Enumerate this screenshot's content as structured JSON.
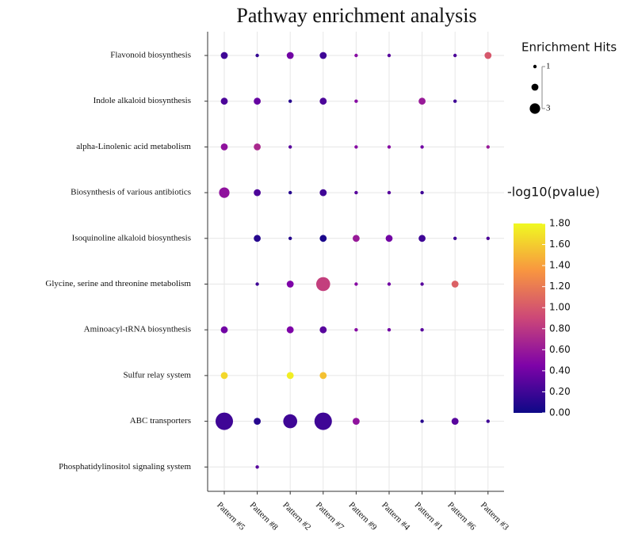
{
  "chart_data": {
    "type": "dotplot",
    "title": "Pathway enrichment analysis",
    "x_categories": [
      "Pattern #5",
      "Pattern #8",
      "Pattern #2",
      "Pattern #7",
      "Pattern #9",
      "Pattern #4",
      "Pattern #1",
      "Pattern #6",
      "Pattern #3"
    ],
    "y_categories": [
      "Flavonoid biosynthesis",
      "Indole alkaloid biosynthesis",
      "alpha-Linolenic acid metabolism",
      "Biosynthesis of various antibiotics",
      "Isoquinoline alkaloid biosynthesis",
      "Glycine, serine and threonine metabolism",
      "Aminoacyl-tRNA biosynthesis",
      "Sulfur relay system",
      "ABC transporters",
      "Phosphatidylinositol signaling system"
    ],
    "hits": [
      [
        2,
        1,
        2,
        2,
        1,
        1,
        null,
        1,
        2
      ],
      [
        2,
        2,
        1,
        2,
        1,
        null,
        2,
        1,
        null
      ],
      [
        2,
        2,
        1,
        null,
        1,
        1,
        1,
        null,
        1
      ],
      [
        3,
        2,
        1,
        2,
        1,
        1,
        1,
        null,
        null
      ],
      [
        null,
        2,
        1,
        2,
        2,
        2,
        2,
        1,
        1
      ],
      [
        null,
        1,
        2,
        4,
        1,
        1,
        1,
        2,
        null
      ],
      [
        2,
        null,
        2,
        2,
        1,
        1,
        1,
        null,
        null
      ],
      [
        2,
        null,
        2,
        2,
        null,
        null,
        null,
        null,
        null
      ],
      [
        5,
        2,
        4,
        5,
        2,
        null,
        1,
        2,
        1
      ],
      [
        null,
        1,
        null,
        null,
        null,
        null,
        null,
        null,
        null
      ]
    ],
    "neglog10_pvalue": [
      [
        0.2,
        0.15,
        0.4,
        0.2,
        0.5,
        0.3,
        null,
        0.25,
        1.0
      ],
      [
        0.25,
        0.35,
        0.1,
        0.25,
        0.5,
        null,
        0.6,
        0.2,
        null
      ],
      [
        0.55,
        0.7,
        0.3,
        null,
        0.5,
        0.5,
        0.4,
        null,
        0.6
      ],
      [
        0.55,
        0.25,
        0.1,
        0.2,
        0.3,
        0.3,
        0.2,
        null,
        null
      ],
      [
        null,
        0.1,
        0.1,
        0.05,
        0.6,
        0.4,
        0.2,
        0.2,
        0.25
      ],
      [
        null,
        0.2,
        0.45,
        0.85,
        0.5,
        0.4,
        0.3,
        1.05,
        null
      ],
      [
        0.4,
        null,
        0.45,
        0.3,
        0.5,
        0.4,
        0.3,
        null,
        null
      ],
      [
        1.65,
        null,
        1.75,
        1.55,
        null,
        null,
        null,
        null,
        null
      ],
      [
        0.2,
        0.1,
        0.2,
        0.2,
        0.55,
        null,
        0.1,
        0.3,
        0.2
      ],
      [
        null,
        0.3,
        null,
        null,
        null,
        null,
        null,
        null,
        null
      ]
    ],
    "size_legend_title": "Enrichment Hits",
    "size_legend_values": [
      1,
      2,
      3
    ],
    "size_ticks": [
      1,
      3
    ],
    "color_legend_title": "-log10(pvalue)",
    "clim": [
      0,
      1.8
    ],
    "cticks": [
      {
        "value": 0,
        "label": "0.00"
      },
      {
        "value": 0.2,
        "label": "0.20"
      },
      {
        "value": 0.4,
        "label": "0.40"
      },
      {
        "value": 0.6,
        "label": "0.60"
      },
      {
        "value": 0.8,
        "label": "0.80"
      },
      {
        "value": 1.0,
        "label": "1.00"
      },
      {
        "value": 1.2,
        "label": "1.20"
      },
      {
        "value": 1.4,
        "label": "1.40"
      },
      {
        "value": 1.6,
        "label": "1.60"
      },
      {
        "value": 1.8,
        "label": "1.80"
      }
    ],
    "colormap": [
      "#0d0887",
      "#7e03a8",
      "#cc4778",
      "#f89540",
      "#f0f921"
    ],
    "grid": true
  }
}
